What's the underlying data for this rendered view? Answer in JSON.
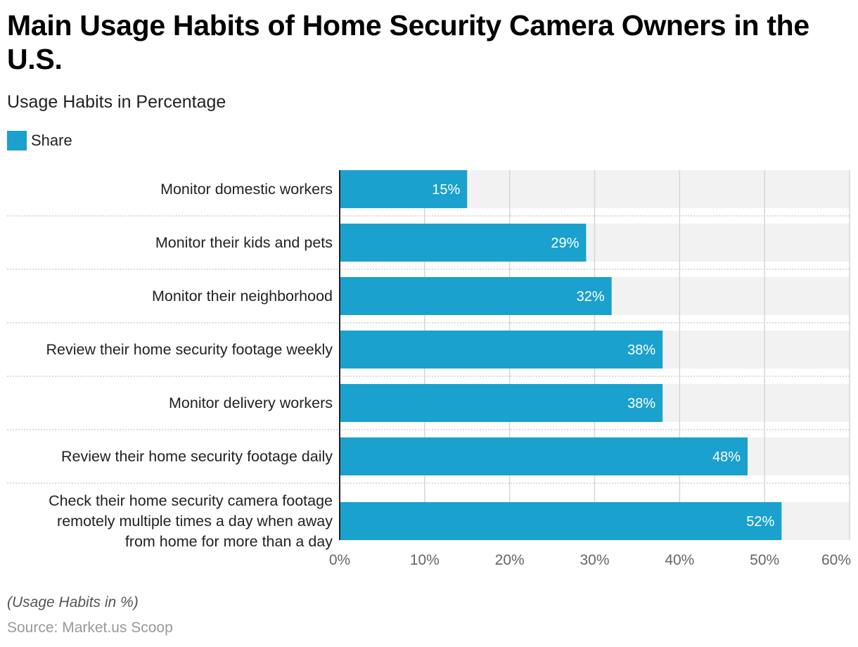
{
  "header": {
    "title": "Main Usage Habits of Home Security Camera Owners in the U.S.",
    "subtitle": "Usage Habits in Percentage"
  },
  "legend": {
    "items": [
      {
        "label": "Share",
        "color": "#1aa1cd"
      }
    ]
  },
  "footer": {
    "note": "(Usage Habits in %)",
    "source": "Source: Market.us Scoop"
  },
  "colors": {
    "bar": "#1aa1cd",
    "band": "#f2f2f2",
    "grid": "#d6d6d6",
    "separator": "#c8c8c8",
    "axis": "#222222",
    "bar_label": "#ffffff",
    "tick_label": "#666666"
  },
  "chart_data": {
    "type": "bar",
    "orientation": "horizontal",
    "title": "Main Usage Habits of Home Security Camera Owners in the U.S.",
    "subtitle": "Usage Habits in Percentage",
    "xlabel": "",
    "ylabel": "",
    "xlim": [
      0,
      60
    ],
    "x_ticks": [
      0,
      10,
      20,
      30,
      40,
      50,
      60
    ],
    "x_tick_labels": [
      "0%",
      "10%",
      "20%",
      "30%",
      "40%",
      "50%",
      "60%"
    ],
    "grid": true,
    "legend_position": "top-left",
    "categories": [
      [
        "Monitor domestic workers"
      ],
      [
        "Monitor their kids and pets"
      ],
      [
        "Monitor their neighborhood"
      ],
      [
        "Review their home security footage weekly"
      ],
      [
        "Monitor delivery workers"
      ],
      [
        "Review their home security footage daily"
      ],
      [
        "Check their home security camera footage",
        "remotely multiple times a day when away",
        "from home for more than a day"
      ]
    ],
    "series": [
      {
        "name": "Share",
        "values": [
          15,
          29,
          32,
          38,
          38,
          48,
          52
        ],
        "data_labels": [
          "15%",
          "29%",
          "32%",
          "38%",
          "38%",
          "48%",
          "52%"
        ]
      }
    ]
  }
}
